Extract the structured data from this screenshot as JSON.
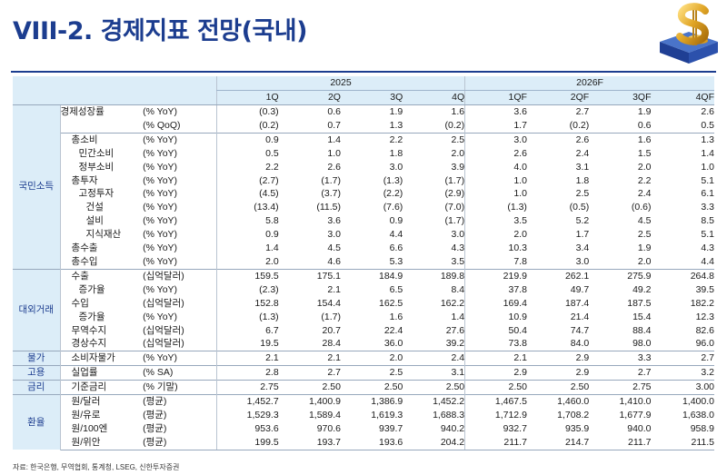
{
  "title": "VIII-2. 경제지표 전망(국내)",
  "source": "자료: 한국은행, 무역협회, 통계청, LSEG, 신한투자증권",
  "header": {
    "year_2025": "2025",
    "year_2026": "2026F",
    "quarters": [
      "1Q",
      "2Q",
      "3Q",
      "4Q",
      "1QF",
      "2QF",
      "3QF",
      "4QF"
    ]
  },
  "categories": {
    "domestic": "국민소득",
    "external": "대외거래",
    "prices": "물가",
    "employment": "고용",
    "rates": "금리",
    "fx": "환율"
  },
  "rows": [
    {
      "name": "경제성장률",
      "unit": "(% YoY)",
      "values": [
        "(0.3)",
        "0.6",
        "1.9",
        "1.6",
        "3.6",
        "2.7",
        "1.9",
        "2.6"
      ]
    },
    {
      "name": "",
      "unit": "(% QoQ)",
      "values": [
        "(0.2)",
        "0.7",
        "1.3",
        "(0.2)",
        "1.7",
        "(0.2)",
        "0.6",
        "0.5"
      ]
    },
    {
      "name": "총소비",
      "unit": "(% YoY)",
      "values": [
        "0.9",
        "1.4",
        "2.2",
        "2.5",
        "3.0",
        "2.6",
        "1.6",
        "1.3"
      ]
    },
    {
      "name": "민간소비",
      "unit": "(% YoY)",
      "values": [
        "0.5",
        "1.0",
        "1.8",
        "2.0",
        "2.6",
        "2.4",
        "1.5",
        "1.4"
      ]
    },
    {
      "name": "정부소비",
      "unit": "(% YoY)",
      "values": [
        "2.2",
        "2.6",
        "3.0",
        "3.9",
        "4.0",
        "3.1",
        "2.0",
        "1.0"
      ]
    },
    {
      "name": "총투자",
      "unit": "(% YoY)",
      "values": [
        "(2.7)",
        "(1.7)",
        "(1.3)",
        "(1.7)",
        "1.0",
        "1.8",
        "2.2",
        "5.1"
      ]
    },
    {
      "name": "고정투자",
      "unit": "(% YoY)",
      "values": [
        "(4.5)",
        "(3.7)",
        "(2.2)",
        "(2.9)",
        "1.0",
        "2.5",
        "2.4",
        "6.1"
      ]
    },
    {
      "name": "건설",
      "unit": "(% YoY)",
      "values": [
        "(13.4)",
        "(11.5)",
        "(7.6)",
        "(7.0)",
        "(1.3)",
        "(0.5)",
        "(0.6)",
        "3.3"
      ]
    },
    {
      "name": "설비",
      "unit": "(% YoY)",
      "values": [
        "5.8",
        "3.6",
        "0.9",
        "(1.7)",
        "3.5",
        "5.2",
        "4.5",
        "8.5"
      ]
    },
    {
      "name": "지식재산",
      "unit": "(% YoY)",
      "values": [
        "0.9",
        "3.0",
        "4.4",
        "3.0",
        "2.0",
        "1.7",
        "2.5",
        "5.1"
      ]
    },
    {
      "name": "총수출",
      "unit": "(% YoY)",
      "values": [
        "1.4",
        "4.5",
        "6.6",
        "4.3",
        "10.3",
        "3.4",
        "1.9",
        "4.3"
      ]
    },
    {
      "name": "총수입",
      "unit": "(% YoY)",
      "values": [
        "2.0",
        "4.6",
        "5.3",
        "3.5",
        "7.8",
        "3.0",
        "2.0",
        "4.4"
      ]
    },
    {
      "name": "수출",
      "unit": "(십억달러)",
      "values": [
        "159.5",
        "175.1",
        "184.9",
        "189.8",
        "219.9",
        "262.1",
        "275.9",
        "264.8"
      ]
    },
    {
      "name": "증가율",
      "unit": "(% YoY)",
      "values": [
        "(2.3)",
        "2.1",
        "6.5",
        "8.4",
        "37.8",
        "49.7",
        "49.2",
        "39.5"
      ]
    },
    {
      "name": "수입",
      "unit": "(십억달러)",
      "values": [
        "152.8",
        "154.4",
        "162.5",
        "162.2",
        "169.4",
        "187.4",
        "187.5",
        "182.2"
      ]
    },
    {
      "name": "증가율",
      "unit": "(% YoY)",
      "values": [
        "(1.3)",
        "(1.7)",
        "1.6",
        "1.4",
        "10.9",
        "21.4",
        "15.4",
        "12.3"
      ]
    },
    {
      "name": "무역수지",
      "unit": "(십억달러)",
      "values": [
        "6.7",
        "20.7",
        "22.4",
        "27.6",
        "50.4",
        "74.7",
        "88.4",
        "82.6"
      ]
    },
    {
      "name": "경상수지",
      "unit": "(십억달러)",
      "values": [
        "19.5",
        "28.4",
        "36.0",
        "39.2",
        "73.8",
        "84.0",
        "98.0",
        "96.0"
      ]
    },
    {
      "name": "소비자물가",
      "unit": "(% YoY)",
      "values": [
        "2.1",
        "2.1",
        "2.0",
        "2.4",
        "2.1",
        "2.9",
        "3.3",
        "2.7"
      ]
    },
    {
      "name": "실업률",
      "unit": "(% SA)",
      "values": [
        "2.8",
        "2.7",
        "2.5",
        "3.1",
        "2.9",
        "2.9",
        "2.7",
        "3.2"
      ]
    },
    {
      "name": "기준금리",
      "unit": "(% 기말)",
      "values": [
        "2.75",
        "2.50",
        "2.50",
        "2.50",
        "2.50",
        "2.50",
        "2.75",
        "3.00"
      ]
    },
    {
      "name": "원/달러",
      "unit": "(평균)",
      "values": [
        "1,452.7",
        "1,400.9",
        "1,386.9",
        "1,452.2",
        "1,467.5",
        "1,460.0",
        "1,410.0",
        "1,400.0"
      ]
    },
    {
      "name": "원/유로",
      "unit": "(평균)",
      "values": [
        "1,529.3",
        "1,589.4",
        "1,619.3",
        "1,688.3",
        "1,712.9",
        "1,708.2",
        "1,677.9",
        "1,638.0"
      ]
    },
    {
      "name": "원/100엔",
      "unit": "(평균)",
      "values": [
        "953.6",
        "970.6",
        "939.7",
        "940.2",
        "932.7",
        "935.9",
        "940.0",
        "958.9"
      ]
    },
    {
      "name": "원/위안",
      "unit": "(평균)",
      "values": [
        "199.5",
        "193.7",
        "193.6",
        "204.2",
        "211.7",
        "214.7",
        "211.7",
        "211.5"
      ]
    }
  ]
}
